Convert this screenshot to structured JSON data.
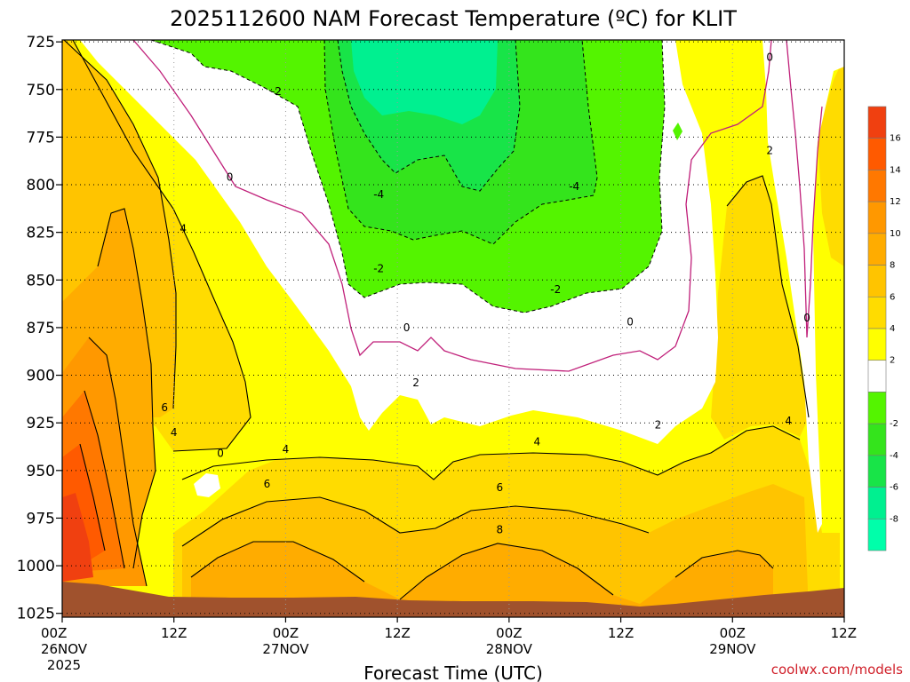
{
  "title": "2025112600 NAM Forecast Temperature (ºC) for KLIT",
  "xlabel": "Forecast Time (UTC)",
  "credit": "coolwx.com/models",
  "chart_data": {
    "type": "contour",
    "title": "2025112600 NAM Forecast Temperature (ºC) for KLIT",
    "xlabel": "Forecast Time (UTC)",
    "ylabel": "",
    "y_axis": "pressure (hPa), inverted",
    "ylim": [
      1027,
      724
    ],
    "xlim_hours": [
      0,
      84
    ],
    "y_ticks": [
      725,
      750,
      775,
      800,
      825,
      850,
      875,
      900,
      925,
      950,
      975,
      1000,
      1025
    ],
    "x_ticks": [
      {
        "hour": 0,
        "label": "00Z",
        "date": "26NOV",
        "year": "2025"
      },
      {
        "hour": 12,
        "label": "12Z"
      },
      {
        "hour": 24,
        "label": "00Z",
        "date": "27NOV"
      },
      {
        "hour": 36,
        "label": "12Z"
      },
      {
        "hour": 48,
        "label": "00Z",
        "date": "28NOV"
      },
      {
        "hour": 60,
        "label": "12Z"
      },
      {
        "hour": 72,
        "label": "00Z",
        "date": "29NOV"
      },
      {
        "hour": 84,
        "label": "12Z"
      }
    ],
    "grid": true,
    "colorbar": {
      "position": "right",
      "bins": [
        {
          "label": "16",
          "color": "#f04010"
        },
        {
          "label": "14",
          "color": "#ff5a00"
        },
        {
          "label": "12",
          "color": "#ff7800"
        },
        {
          "label": "10",
          "color": "#ff9800"
        },
        {
          "label": "8",
          "color": "#ffac00"
        },
        {
          "label": "6",
          "color": "#ffc400"
        },
        {
          "label": "4",
          "color": "#ffdc00"
        },
        {
          "label": "2",
          "color": "#ffff00"
        },
        {
          "label": "",
          "color": "#ffffff"
        },
        {
          "label": "-2",
          "color": "#54f400"
        },
        {
          "label": "-4",
          "color": "#34e41c"
        },
        {
          "label": "-6",
          "color": "#18e448"
        },
        {
          "label": "-8",
          "color": "#00f090"
        },
        {
          "label": "",
          "color": "#00ffaa"
        }
      ]
    },
    "contour_labels": [
      {
        "text": "-2",
        "hour": 23,
        "p": 751
      },
      {
        "text": "0",
        "hour": 18,
        "p": 796
      },
      {
        "text": "0",
        "hour": 76,
        "p": 733
      },
      {
        "text": "2",
        "hour": 76,
        "p": 782
      },
      {
        "text": "-4",
        "hour": 34,
        "p": 805
      },
      {
        "text": "-4",
        "hour": 55,
        "p": 801
      },
      {
        "text": "-2",
        "hour": 34,
        "p": 844
      },
      {
        "text": "-2",
        "hour": 53,
        "p": 855
      },
      {
        "text": "4",
        "hour": 13,
        "p": 823
      },
      {
        "text": "0",
        "hour": 37,
        "p": 875
      },
      {
        "text": "0",
        "hour": 61,
        "p": 872
      },
      {
        "text": "0",
        "hour": 80,
        "p": 870
      },
      {
        "text": "2",
        "hour": 38,
        "p": 904
      },
      {
        "text": "2",
        "hour": 64,
        "p": 926
      },
      {
        "text": "6",
        "hour": 11,
        "p": 917
      },
      {
        "text": "4",
        "hour": 12,
        "p": 930
      },
      {
        "text": "0",
        "hour": 17,
        "p": 941
      },
      {
        "text": "4",
        "hour": 24,
        "p": 939
      },
      {
        "text": "4",
        "hour": 51,
        "p": 935
      },
      {
        "text": "4",
        "hour": 78,
        "p": 924
      },
      {
        "text": "6",
        "hour": 22,
        "p": 957
      },
      {
        "text": "6",
        "hour": 47,
        "p": 959
      },
      {
        "text": "8",
        "hour": 47,
        "p": 981
      }
    ]
  }
}
